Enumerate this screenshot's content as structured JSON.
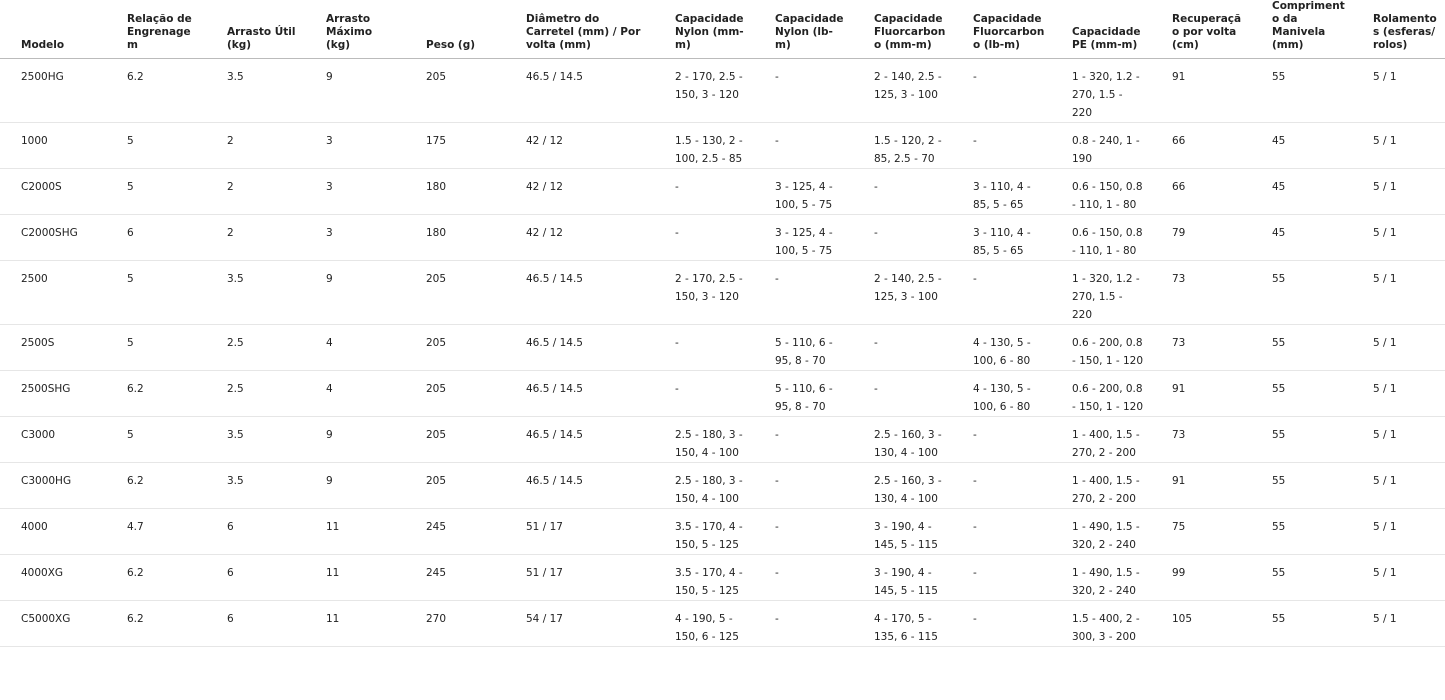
{
  "table": {
    "header": [
      "Modelo",
      "Relação de Engrenagem",
      "Arrasto Útil (kg)",
      "Arrasto Máximo (kg)",
      "Peso (g)",
      "Diâmetro do Carretel (mm) / Por volta (mm)",
      "Capacidade Nylon (mm-m)",
      "Capacidade Nylon (lb-m)",
      "Capacidade Fluorcarbono (mm-m)",
      "Capacidade Fluorcarbono (lb-m)",
      "Capacidade PE (mm-m)",
      "Recuperação por volta (cm)",
      "Comprimento da Manivela (mm)",
      "Rolamentos (esferas/ rolos)"
    ],
    "rows": [
      [
        "2500HG",
        "6.2",
        "3.5",
        "9",
        "205",
        "46.5 / 14.5",
        "2 - 170, 2.5 - 150, 3 - 120",
        "-",
        "2 - 140, 2.5 - 125, 3 - 100",
        "-",
        "1 - 320, 1.2 - 270, 1.5 - 220",
        "91",
        "55",
        "5 / 1"
      ],
      [
        "1000",
        "5",
        "2",
        "3",
        "175",
        "42 / 12",
        "1.5 - 130, 2 - 100, 2.5 - 85",
        "-",
        "1.5 - 120, 2 - 85, 2.5 - 70",
        "-",
        "0.8 - 240, 1 - 190",
        "66",
        "45",
        "5 / 1"
      ],
      [
        "C2000S",
        "5",
        "2",
        "3",
        "180",
        "42 / 12",
        "-",
        "3 - 125, 4 - 100, 5 - 75",
        "-",
        "3 - 110, 4 - 85, 5 - 65",
        "0.6 - 150, 0.8 - 110, 1 - 80",
        "66",
        "45",
        "5 / 1"
      ],
      [
        "C2000SHG",
        "6",
        "2",
        "3",
        "180",
        "42 / 12",
        "-",
        "3 - 125, 4 - 100, 5 - 75",
        "-",
        "3 - 110, 4 - 85, 5 - 65",
        "0.6 - 150, 0.8 - 110, 1 - 80",
        "79",
        "45",
        "5 / 1"
      ],
      [
        "2500",
        "5",
        "3.5",
        "9",
        "205",
        "46.5 / 14.5",
        "2 - 170, 2.5 - 150, 3 - 120",
        "-",
        "2 - 140, 2.5 - 125, 3 - 100",
        "-",
        "1 - 320, 1.2 - 270, 1.5 - 220",
        "73",
        "55",
        "5 / 1"
      ],
      [
        "2500S",
        "5",
        "2.5",
        "4",
        "205",
        "46.5 / 14.5",
        "-",
        "5 - 110, 6 - 95, 8 - 70",
        "-",
        "4 - 130, 5 - 100, 6 - 80",
        "0.6 - 200, 0.8 - 150, 1 - 120",
        "73",
        "55",
        "5 / 1"
      ],
      [
        "2500SHG",
        "6.2",
        "2.5",
        "4",
        "205",
        "46.5 / 14.5",
        "-",
        "5 - 110, 6 - 95, 8 - 70",
        "-",
        "4 - 130, 5 - 100, 6 - 80",
        "0.6 - 200, 0.8 - 150, 1 - 120",
        "91",
        "55",
        "5 / 1"
      ],
      [
        "C3000",
        "5",
        "3.5",
        "9",
        "205",
        "46.5 / 14.5",
        "2.5 - 180, 3 - 150, 4 - 100",
        "-",
        "2.5 - 160, 3 - 130, 4 - 100",
        "-",
        "1 - 400, 1.5 - 270, 2 - 200",
        "73",
        "55",
        "5 / 1"
      ],
      [
        "C3000HG",
        "6.2",
        "3.5",
        "9",
        "205",
        "46.5 / 14.5",
        "2.5 - 180, 3 - 150, 4 - 100",
        "-",
        "2.5 - 160, 3 - 130, 4 - 100",
        "-",
        "1 - 400, 1.5 - 270, 2 - 200",
        "91",
        "55",
        "5 / 1"
      ],
      [
        "4000",
        "4.7",
        "6",
        "11",
        "245",
        "51 / 17",
        "3.5 - 170, 4 - 150, 5 - 125",
        "-",
        "3 - 190, 4 - 145, 5 - 115",
        "-",
        "1 - 490, 1.5 - 320, 2 - 240",
        "75",
        "55",
        "5 / 1"
      ],
      [
        "4000XG",
        "6.2",
        "6",
        "11",
        "245",
        "51 / 17",
        "3.5 - 170, 4 - 150, 5 - 125",
        "-",
        "3 - 190, 4 - 145, 5 - 115",
        "-",
        "1 - 490, 1.5 - 320, 2 - 240",
        "99",
        "55",
        "5 / 1"
      ],
      [
        "C5000XG",
        "6.2",
        "6",
        "11",
        "270",
        "54 / 17",
        "4 - 190, 5 - 150, 6 - 125",
        "-",
        "4 - 170, 5 - 135, 6 - 115",
        "-",
        "1.5 - 400, 2 - 300, 3 - 200",
        "105",
        "55",
        "5 / 1"
      ]
    ]
  }
}
